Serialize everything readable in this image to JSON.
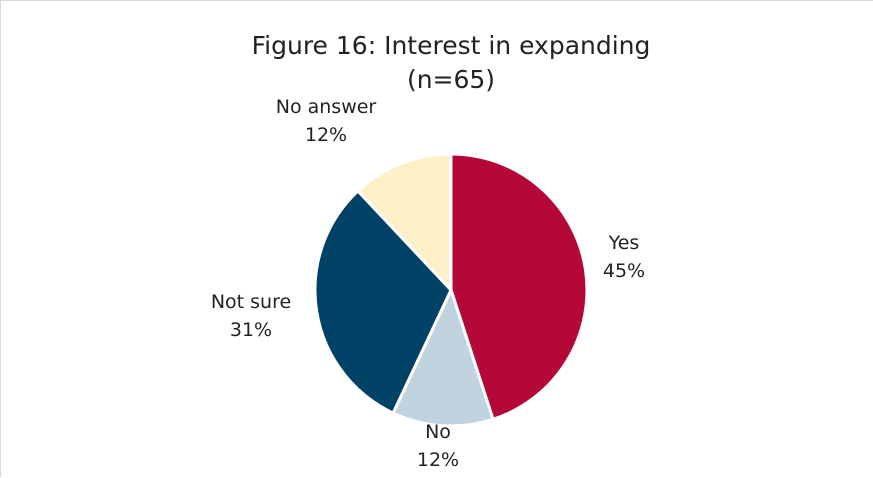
{
  "chart_data": {
    "type": "pie",
    "title": "Figure 16: Interest in expanding",
    "subtitle": "(n=65)",
    "slices": [
      {
        "label": "Yes",
        "value": 45,
        "value_label": "45%",
        "color": "#B30838"
      },
      {
        "label": "No",
        "value": 12,
        "value_label": "12%",
        "color": "#C2D3E0"
      },
      {
        "label": "Not sure",
        "value": 31,
        "value_label": "31%",
        "color": "#004166"
      },
      {
        "label": "No answer",
        "value": 12,
        "value_label": "12%",
        "color": "#FDEFC8"
      }
    ]
  }
}
